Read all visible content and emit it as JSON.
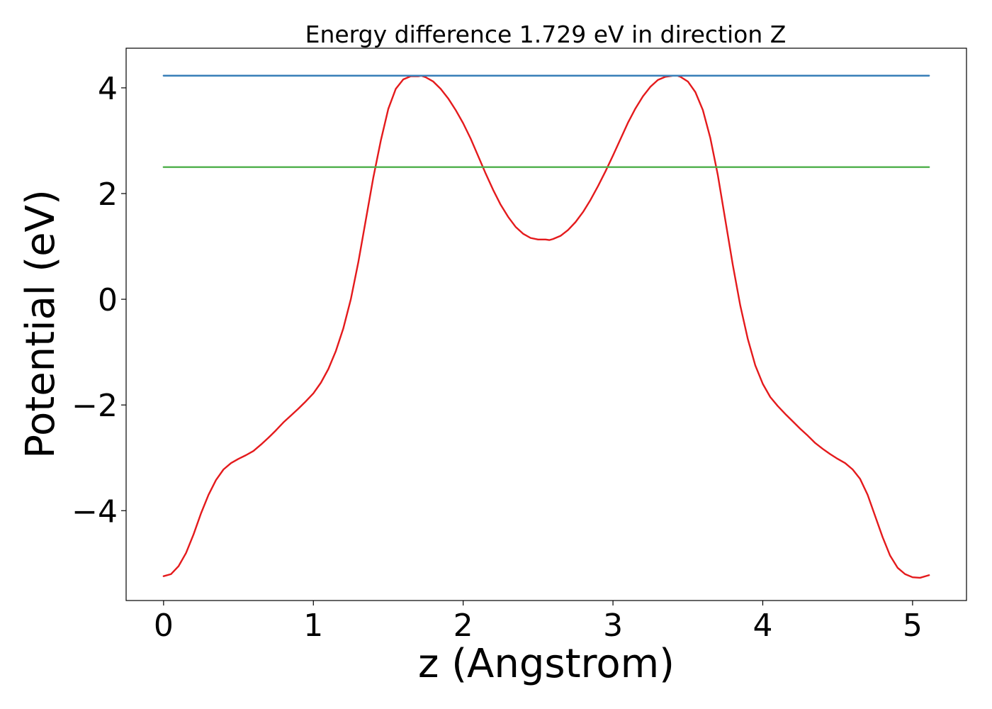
{
  "chart_data": {
    "type": "line",
    "title": "Energy difference 1.729 eV in direction Z",
    "xlabel": "z (Angstrom)",
    "ylabel": "Potential (eV)",
    "xlim": [
      -0.25,
      5.36
    ],
    "ylim": [
      -5.7,
      4.75
    ],
    "xticks": [
      0,
      1,
      2,
      3,
      4,
      5
    ],
    "xtick_labels": [
      "0",
      "1",
      "2",
      "3",
      "4",
      "5"
    ],
    "yticks": [
      -4,
      -2,
      0,
      2,
      4
    ],
    "ytick_labels": [
      "−4",
      "−2",
      "0",
      "2",
      "4"
    ],
    "grid": false,
    "legend": "none",
    "series": [
      {
        "color": "#e41a1c",
        "x": [
          0.0,
          0.05,
          0.1,
          0.15,
          0.2,
          0.25,
          0.3,
          0.35,
          0.4,
          0.45,
          0.5,
          0.55,
          0.6,
          0.65,
          0.7,
          0.75,
          0.8,
          0.85,
          0.9,
          0.95,
          1.0,
          1.05,
          1.1,
          1.15,
          1.2,
          1.25,
          1.3,
          1.35,
          1.4,
          1.45,
          1.5,
          1.55,
          1.6,
          1.65,
          1.7,
          1.72,
          1.75,
          1.8,
          1.85,
          1.9,
          1.95,
          2.0,
          2.05,
          2.1,
          2.15,
          2.2,
          2.25,
          2.3,
          2.35,
          2.4,
          2.45,
          2.5,
          2.55,
          2.575,
          2.6,
          2.65,
          2.7,
          2.75,
          2.8,
          2.85,
          2.9,
          2.95,
          3.0,
          3.05,
          3.1,
          3.15,
          3.2,
          3.25,
          3.3,
          3.35,
          3.4,
          3.43,
          3.45,
          3.5,
          3.55,
          3.6,
          3.65,
          3.7,
          3.75,
          3.8,
          3.85,
          3.9,
          3.95,
          4.0,
          4.05,
          4.1,
          4.15,
          4.2,
          4.25,
          4.3,
          4.35,
          4.4,
          4.45,
          4.5,
          4.55,
          4.6,
          4.65,
          4.7,
          4.75,
          4.8,
          4.85,
          4.9,
          4.95,
          5.0,
          5.05,
          5.11
        ],
        "y": [
          -5.24,
          -5.2,
          -5.05,
          -4.8,
          -4.45,
          -4.05,
          -3.7,
          -3.42,
          -3.22,
          -3.1,
          -3.02,
          -2.95,
          -2.87,
          -2.75,
          -2.62,
          -2.48,
          -2.33,
          -2.2,
          -2.07,
          -1.93,
          -1.78,
          -1.58,
          -1.32,
          -0.98,
          -0.55,
          0.0,
          0.7,
          1.5,
          2.3,
          3.0,
          3.6,
          3.98,
          4.16,
          4.22,
          4.22,
          4.23,
          4.2,
          4.12,
          3.98,
          3.8,
          3.58,
          3.33,
          3.04,
          2.71,
          2.38,
          2.07,
          1.79,
          1.56,
          1.37,
          1.24,
          1.16,
          1.13,
          1.13,
          1.12,
          1.14,
          1.2,
          1.31,
          1.46,
          1.65,
          1.88,
          2.14,
          2.42,
          2.72,
          3.03,
          3.34,
          3.61,
          3.84,
          4.02,
          4.15,
          4.21,
          4.23,
          4.23,
          4.21,
          4.12,
          3.92,
          3.58,
          3.05,
          2.35,
          1.5,
          0.65,
          -0.12,
          -0.75,
          -1.25,
          -1.6,
          -1.85,
          -2.02,
          -2.17,
          -2.31,
          -2.45,
          -2.58,
          -2.72,
          -2.83,
          -2.93,
          -3.02,
          -3.1,
          -3.22,
          -3.4,
          -3.7,
          -4.1,
          -4.5,
          -4.85,
          -5.08,
          -5.2,
          -5.26,
          -5.27,
          -5.22
        ]
      },
      {
        "color": "#377eb8",
        "x": [
          0.0,
          5.11
        ],
        "y": [
          4.23,
          4.23
        ]
      },
      {
        "color": "#4daf4a",
        "x": [
          0.0,
          5.11
        ],
        "y": [
          2.5,
          2.5
        ]
      }
    ]
  }
}
